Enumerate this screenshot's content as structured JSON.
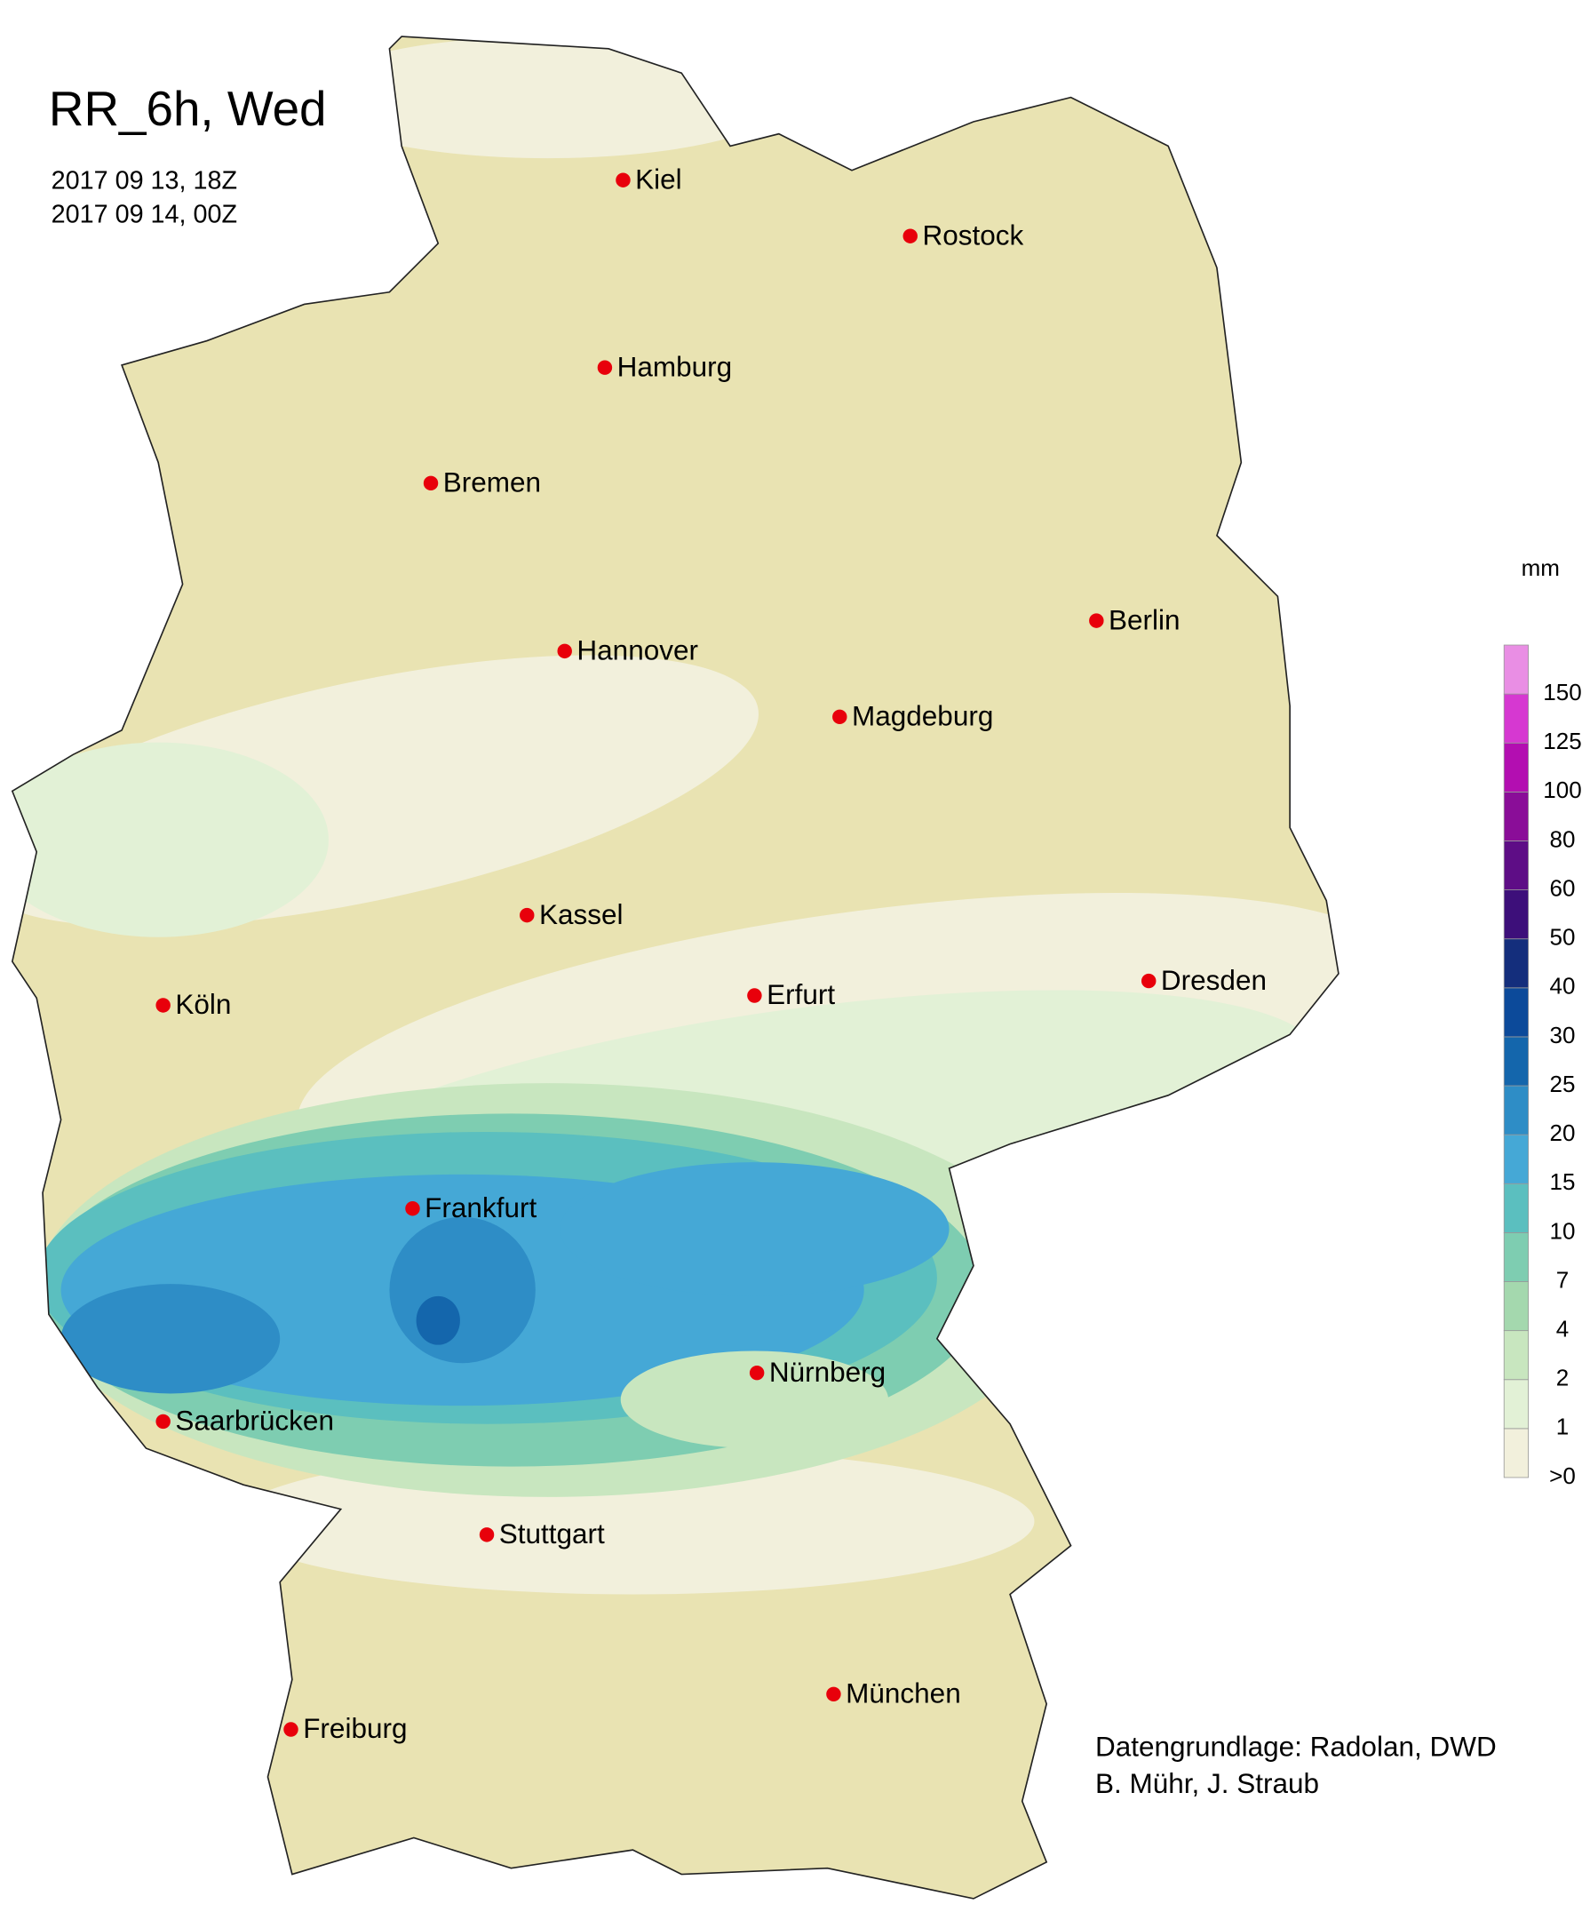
{
  "title": "RR_6h, Wed",
  "dates": [
    "2017 09 13, 18Z",
    "2017 09 14, 00Z"
  ],
  "cities": [
    "Kiel",
    "Rostock",
    "Hamburg",
    "Bremen",
    "Hannover",
    "Berlin",
    "Magdeburg",
    "Kassel",
    "Köln",
    "Erfurt",
    "Dresden",
    "Frankfurt",
    "Nürnberg",
    "Saarbrücken",
    "Stuttgart",
    "München",
    "Freiburg"
  ],
  "legend": {
    "unit": "mm",
    "bins": [
      {
        "label": ">0",
        "color": "#f2f0dc"
      },
      {
        "label": "1",
        "color": "#e2f1d6"
      },
      {
        "label": "2",
        "color": "#c8e6bf"
      },
      {
        "label": "4",
        "color": "#a4d8ae"
      },
      {
        "label": "7",
        "color": "#7ecdb1"
      },
      {
        "label": "10",
        "color": "#5bbfbf"
      },
      {
        "label": "15",
        "color": "#45a8d6"
      },
      {
        "label": "20",
        "color": "#2e8dc6"
      },
      {
        "label": "25",
        "color": "#1466ac"
      },
      {
        "label": "30",
        "color": "#0c4a9a"
      },
      {
        "label": "40",
        "color": "#142e7c"
      },
      {
        "label": "50",
        "color": "#3d0f7a"
      },
      {
        "label": "60",
        "color": "#5e0d86"
      },
      {
        "label": "80",
        "color": "#8a0d98"
      },
      {
        "label": "100",
        "color": "#b30eb1"
      },
      {
        "label": "125",
        "color": "#d638d1"
      },
      {
        "label": "150",
        "color": "#e98ee4"
      }
    ]
  },
  "credits": [
    "Datengrundlage: Radolan, DWD",
    "B. Mühr, J. Straub"
  ]
}
